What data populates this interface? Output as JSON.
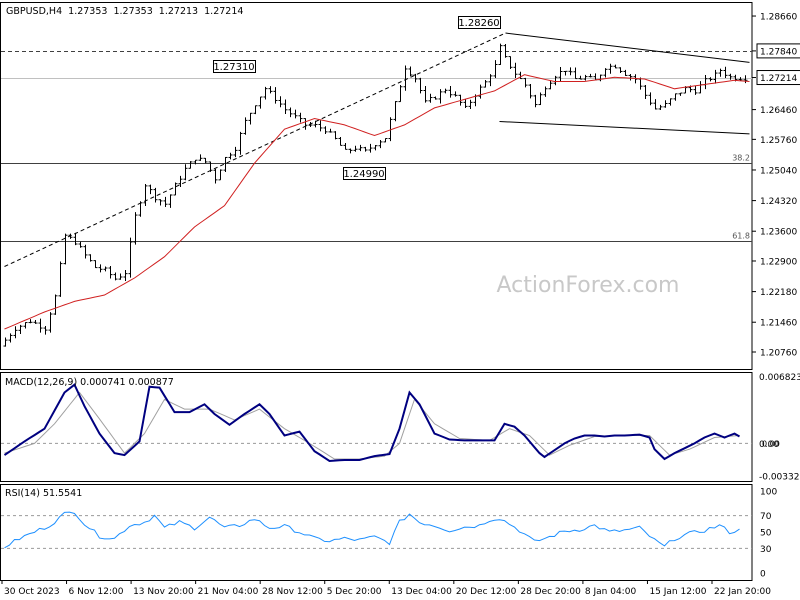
{
  "chart_data": [
    {
      "type": "candlestick",
      "symbol_line": "GBPUSD,H4  1.27353  1.27353  1.27213  1.27214",
      "watermark": "ActionForex.com",
      "current_price_label": "1.27214",
      "ylim": [
        1.2036,
        1.2899
      ],
      "price_axis_labels": [
        "1.28660",
        "1.27840",
        "1.27214",
        "1.26460",
        "1.25760",
        "1.25040",
        "1.24320",
        "1.23600",
        "1.22900",
        "1.22180",
        "1.21460",
        "1.20760"
      ],
      "price_axis_values": [
        1.2866,
        1.2784,
        1.27214,
        1.2646,
        1.2576,
        1.2504,
        1.2432,
        1.236,
        1.229,
        1.2218,
        1.2146,
        1.2076
      ],
      "highlighted_axis_labels": [
        "1.27840",
        "1.27214"
      ],
      "time_labels": [
        "30 Oct 2023",
        "6 Nov 12:00",
        "13 Nov 20:00",
        "21 Nov 04:00",
        "28 Nov 12:00",
        "5 Dec 20:00",
        "13 Dec 04:00",
        "20 Dec 12:00",
        "28 Dec 20:00",
        "8 Jan 04:00",
        "15 Jan 12:00",
        "22 Jan 20:00"
      ],
      "annotations": [
        {
          "text": "1.28260",
          "value": 1.2826
        },
        {
          "text": "1.27310",
          "value": 1.2731
        },
        {
          "text": "1.24990",
          "value": 1.2499
        }
      ],
      "horizontal_levels": [
        {
          "value": 1.2784,
          "style": "dashed",
          "color": "#404040"
        },
        {
          "value": 1.27214,
          "style": "solid",
          "color": "#c0c0c0"
        },
        {
          "value": 1.2521,
          "style": "solid",
          "color": "#404040",
          "label": "38.2"
        },
        {
          "value": 1.2337,
          "style": "solid",
          "color": "#404040",
          "label": "61.8"
        }
      ],
      "trendlines": [
        {
          "style": "dashed",
          "from": [
            0,
            1.2277
          ],
          "to": [
            100.2,
            1.2826
          ]
        },
        {
          "style": "solid",
          "from": [
            100.2,
            1.2826
          ],
          "to": [
            149,
            1.2757
          ]
        },
        {
          "style": "solid",
          "from": [
            99,
            1.2618
          ],
          "to": [
            149,
            1.2589
          ]
        }
      ],
      "price_points": [
        [
          0,
          1.209
        ],
        [
          3,
          1.2132
        ],
        [
          6,
          1.2149
        ],
        [
          9,
          1.2132
        ],
        [
          11,
          1.2206
        ],
        [
          13,
          1.235
        ],
        [
          15,
          1.2335
        ],
        [
          17,
          1.2303
        ],
        [
          19,
          1.2275
        ],
        [
          21,
          1.2268
        ],
        [
          23,
          1.2248
        ],
        [
          25,
          1.2263
        ],
        [
          27,
          1.2395
        ],
        [
          29,
          1.247
        ],
        [
          31,
          1.244
        ],
        [
          33,
          1.2424
        ],
        [
          35,
          1.2467
        ],
        [
          37,
          1.2506
        ],
        [
          39,
          1.2532
        ],
        [
          41,
          1.2523
        ],
        [
          43,
          1.2484
        ],
        [
          45,
          1.2532
        ],
        [
          47,
          1.2556
        ],
        [
          49,
          1.2618
        ],
        [
          51,
          1.266
        ],
        [
          53,
          1.2696
        ],
        [
          55,
          1.2672
        ],
        [
          57,
          1.2646
        ],
        [
          59,
          1.2628
        ],
        [
          61,
          1.261
        ],
        [
          63,
          1.2608
        ],
        [
          65,
          1.2599
        ],
        [
          67,
          1.2576
        ],
        [
          69,
          1.2547
        ],
        [
          71,
          1.2556
        ],
        [
          73,
          1.2547
        ],
        [
          75,
          1.2566
        ],
        [
          77,
          1.258
        ],
        [
          79,
          1.266
        ],
        [
          81,
          1.2746
        ],
        [
          83,
          1.272
        ],
        [
          85,
          1.2662
        ],
        [
          87,
          1.2676
        ],
        [
          89,
          1.2694
        ],
        [
          91,
          1.2676
        ],
        [
          93,
          1.2648
        ],
        [
          95,
          1.2682
        ],
        [
          97,
          1.271
        ],
        [
          99,
          1.2749
        ],
        [
          100,
          1.2792
        ],
        [
          101,
          1.2766
        ],
        [
          103,
          1.2731
        ],
        [
          105,
          1.2704
        ],
        [
          107,
          1.2657
        ],
        [
          109,
          1.2701
        ],
        [
          111,
          1.2727
        ],
        [
          113,
          1.274
        ],
        [
          115,
          1.2718
        ],
        [
          117,
          1.2722
        ],
        [
          119,
          1.2714
        ],
        [
          121,
          1.2746
        ],
        [
          123,
          1.2749
        ],
        [
          125,
          1.2731
        ],
        [
          127,
          1.2718
        ],
        [
          129,
          1.268
        ],
        [
          131,
          1.2648
        ],
        [
          133,
          1.2657
        ],
        [
          135,
          1.268
        ],
        [
          137,
          1.2695
        ],
        [
          139,
          1.2691
        ],
        [
          141,
          1.2713
        ],
        [
          143,
          1.2727
        ],
        [
          144,
          1.2739
        ],
        [
          146,
          1.2722
        ],
        [
          148,
          1.2721
        ]
      ],
      "moving_average": [
        [
          0,
          1.213
        ],
        [
          8,
          1.217
        ],
        [
          14,
          1.2195
        ],
        [
          20,
          1.221
        ],
        [
          26,
          1.225
        ],
        [
          32,
          1.23
        ],
        [
          38,
          1.237
        ],
        [
          44,
          1.242
        ],
        [
          50,
          1.252
        ],
        [
          56,
          1.26
        ],
        [
          62,
          1.2625
        ],
        [
          68,
          1.261
        ],
        [
          74,
          1.2585
        ],
        [
          80,
          1.261
        ],
        [
          86,
          1.265
        ],
        [
          92,
          1.267
        ],
        [
          98,
          1.269
        ],
        [
          104,
          1.2728
        ],
        [
          110,
          1.2712
        ],
        [
          116,
          1.2712
        ],
        [
          122,
          1.2722
        ],
        [
          128,
          1.2718
        ],
        [
          134,
          1.2695
        ],
        [
          140,
          1.2705
        ],
        [
          146,
          1.2715
        ],
        [
          149,
          1.2712
        ]
      ]
    },
    {
      "type": "line",
      "title": "MACD(12,26,9) 0.000741 0.000877",
      "axis_labels": [
        "0.006823",
        "0.00",
        "-0.003321"
      ],
      "axis_values": [
        0.006823,
        0.0,
        -0.003321
      ],
      "zero_marker": "0.00",
      "ylim": [
        -0.00385,
        0.0073
      ],
      "series": [
        {
          "name": "MACD",
          "color": "#000080",
          "points": [
            [
              0,
              -0.0012
            ],
            [
              4,
              0.0002
            ],
            [
              8,
              0.0015
            ],
            [
              12,
              0.0052
            ],
            [
              14,
              0.006
            ],
            [
              16,
              0.0038
            ],
            [
              19,
              0.001
            ],
            [
              22,
              -0.001
            ],
            [
              24,
              -0.0012
            ],
            [
              27,
              0.0002
            ],
            [
              29,
              0.0058
            ],
            [
              31,
              0.0057
            ],
            [
              34,
              0.0032
            ],
            [
              37,
              0.0032
            ],
            [
              40,
              0.004
            ],
            [
              42,
              0.003
            ],
            [
              45,
              0.0019
            ],
            [
              48,
              0.003
            ],
            [
              51,
              0.004
            ],
            [
              53,
              0.003
            ],
            [
              56,
              0.0008
            ],
            [
              59,
              0.0012
            ],
            [
              62,
              -0.0008
            ],
            [
              65,
              -0.0018
            ],
            [
              68,
              -0.0017
            ],
            [
              71,
              -0.0017
            ],
            [
              74,
              -0.0013
            ],
            [
              77,
              -0.0011
            ],
            [
              79,
              0.0015
            ],
            [
              81,
              0.0052
            ],
            [
              83,
              0.004
            ],
            [
              86,
              0.001
            ],
            [
              89,
              0.0004
            ],
            [
              92,
              0.0003
            ],
            [
              95,
              0.0003
            ],
            [
              98,
              0.0003
            ],
            [
              100,
              0.002
            ],
            [
              102,
              0.0017
            ],
            [
              104,
              0.0008
            ],
            [
              107,
              -0.001
            ],
            [
              108,
              -0.0014
            ],
            [
              110,
              -0.0007
            ],
            [
              112,
              0.0
            ],
            [
              114,
              0.0005
            ],
            [
              116,
              0.0008
            ],
            [
              118,
              0.0008
            ],
            [
              120,
              0.0007
            ],
            [
              122,
              0.0008
            ],
            [
              124,
              0.0008
            ],
            [
              127,
              0.0009
            ],
            [
              129,
              0.0006
            ],
            [
              130,
              -0.0006
            ],
            [
              132,
              -0.0016
            ],
            [
              134,
              -0.001
            ],
            [
              136,
              -0.0005
            ],
            [
              138,
              0.0
            ],
            [
              140,
              0.0006
            ],
            [
              142,
              0.001
            ],
            [
              144,
              0.0006
            ],
            [
              146,
              0.001
            ],
            [
              147,
              0.0007
            ]
          ]
        },
        {
          "name": "Signal",
          "color": "#a0a0a0",
          "points": [
            [
              0,
              -0.001
            ],
            [
              6,
              0.0
            ],
            [
              10,
              0.002
            ],
            [
              15,
              0.0052
            ],
            [
              19,
              0.0025
            ],
            [
              24,
              -0.001
            ],
            [
              28,
              0.001
            ],
            [
              32,
              0.0045
            ],
            [
              36,
              0.0035
            ],
            [
              41,
              0.0035
            ],
            [
              46,
              0.0024
            ],
            [
              51,
              0.0035
            ],
            [
              56,
              0.0015
            ],
            [
              61,
              0.0
            ],
            [
              66,
              -0.0016
            ],
            [
              71,
              -0.0016
            ],
            [
              76,
              -0.0013
            ],
            [
              79,
              0.0
            ],
            [
              82,
              0.0045
            ],
            [
              86,
              0.002
            ],
            [
              91,
              0.0005
            ],
            [
              97,
              0.0003
            ],
            [
              101,
              0.0015
            ],
            [
              105,
              0.0008
            ],
            [
              109,
              -0.0012
            ],
            [
              113,
              -0.0002
            ],
            [
              118,
              0.0007
            ],
            [
              124,
              0.0008
            ],
            [
              129,
              0.0008
            ],
            [
              133,
              -0.0012
            ],
            [
              137,
              -0.0006
            ],
            [
              142,
              0.0006
            ],
            [
              147,
              0.0008
            ]
          ]
        }
      ]
    },
    {
      "type": "line",
      "title": "RSI(14) 51.5541",
      "axis_labels": [
        "100",
        "70",
        "50",
        "30",
        "0"
      ],
      "axis_values": [
        100,
        70,
        50,
        30,
        0
      ],
      "reference_levels": [
        70,
        30
      ],
      "ylim": [
        0,
        100
      ],
      "series": [
        {
          "name": "RSI",
          "color": "#1e90ff",
          "points": [
            [
              0,
              32
            ],
            [
              3,
              42
            ],
            [
              6,
              50
            ],
            [
              9,
              58
            ],
            [
              12,
              72
            ],
            [
              14,
              75
            ],
            [
              16,
              60
            ],
            [
              19,
              45
            ],
            [
              22,
              42
            ],
            [
              25,
              58
            ],
            [
              28,
              62
            ],
            [
              30,
              70
            ],
            [
              32,
              55
            ],
            [
              35,
              62
            ],
            [
              38,
              55
            ],
            [
              41,
              68
            ],
            [
              44,
              55
            ],
            [
              47,
              58
            ],
            [
              50,
              66
            ],
            [
              53,
              55
            ],
            [
              56,
              57
            ],
            [
              59,
              50
            ],
            [
              62,
              42
            ],
            [
              65,
              39
            ],
            [
              68,
              42
            ],
            [
              71,
              40
            ],
            [
              74,
              44
            ],
            [
              77,
              37
            ],
            [
              79,
              62
            ],
            [
              81,
              72
            ],
            [
              83,
              62
            ],
            [
              86,
              58
            ],
            [
              89,
              52
            ],
            [
              92,
              56
            ],
            [
              95,
              58
            ],
            [
              97,
              65
            ],
            [
              99,
              67
            ],
            [
              101,
              60
            ],
            [
              103,
              52
            ],
            [
              106,
              38
            ],
            [
              109,
              44
            ],
            [
              112,
              51
            ],
            [
              115,
              53
            ],
            [
              118,
              58
            ],
            [
              121,
              50
            ],
            [
              124,
              52
            ],
            [
              127,
              55
            ],
            [
              130,
              40
            ],
            [
              132,
              32
            ],
            [
              134,
              42
            ],
            [
              137,
              48
            ],
            [
              140,
              52
            ],
            [
              143,
              58
            ],
            [
              145,
              50
            ],
            [
              147,
              52
            ]
          ]
        }
      ]
    }
  ]
}
